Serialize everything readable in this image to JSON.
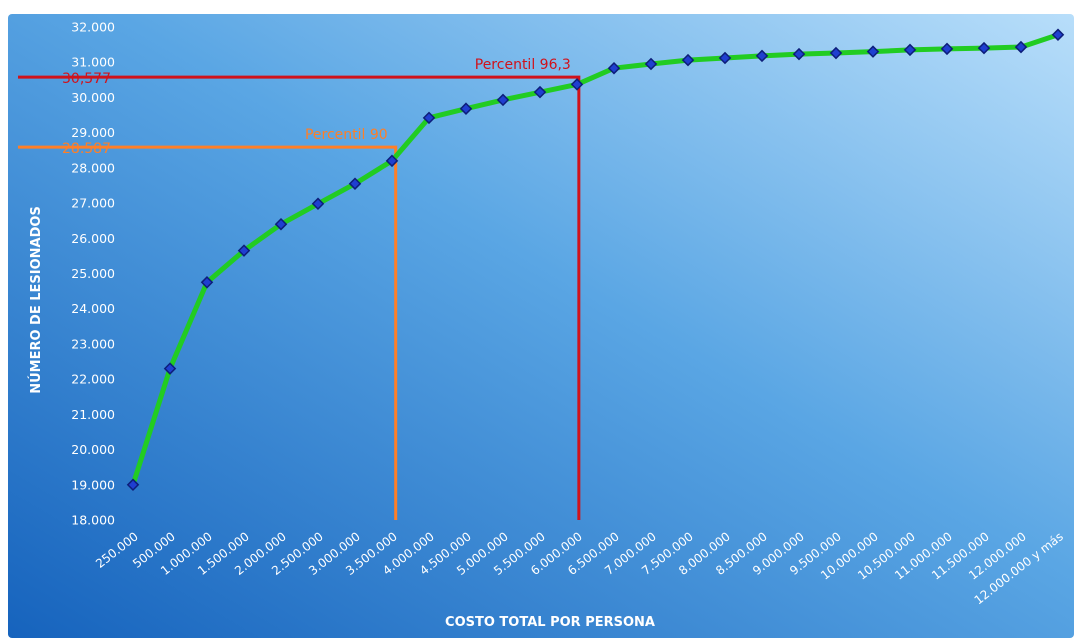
{
  "chart_data": {
    "type": "line",
    "title": "",
    "xlabel": "COSTO TOTAL POR PERSONA",
    "ylabel": "NÚMERO DE LESIONADOS",
    "categories": [
      "250.000",
      "500.000",
      "1.000.000",
      "1.500.000",
      "2.000.000",
      "2.500.000",
      "3.000.000",
      "3.500.000",
      "4.000.000",
      "4.500.000",
      "5.000.000",
      "5.500.000",
      "6.000.000",
      "6.500.000",
      "7.000.000",
      "7.500.000",
      "8.000.000",
      "8.500.000",
      "9.000.000",
      "9.500.000",
      "10.000.000",
      "10.500.000",
      "11.000.000",
      "11.500.000",
      "12.000.000",
      "12.000.000 y más"
    ],
    "series": [
      {
        "values": [
          19000,
          22300,
          24750,
          25650,
          26400,
          26980,
          27550,
          28200,
          29420,
          29680,
          29930,
          30150,
          30370,
          30830,
          30950,
          31060,
          31120,
          31180,
          31230,
          31260,
          31300,
          31350,
          31380,
          31400,
          31430,
          31780
        ]
      }
    ],
    "yticks": [
      "18.000",
      "19.000",
      "20.000",
      "21.000",
      "22.000",
      "23.000",
      "24.000",
      "25.000",
      "26.000",
      "27.000",
      "28.000",
      "29.000",
      "30.000",
      "31.000",
      "32.000"
    ],
    "ylim": [
      18000,
      32000
    ],
    "grid": false,
    "annotations": [
      {
        "label": "Percentil 90",
        "value_label": "28.587",
        "y": 28587,
        "category_index": 7.1,
        "color": "#ff7f27"
      },
      {
        "label": "Percentil 96,3",
        "value_label": "30,577",
        "y": 30577,
        "category_index": 12.05,
        "color": "#d0121b"
      }
    ],
    "colors": {
      "line": "#22cc22",
      "marker_fill": "#1f3fd0",
      "marker_stroke": "#0d1e7a",
      "text": "#ffffff",
      "background_top": "#9ed0f2",
      "background_bottom": "#1b6fc4"
    }
  }
}
